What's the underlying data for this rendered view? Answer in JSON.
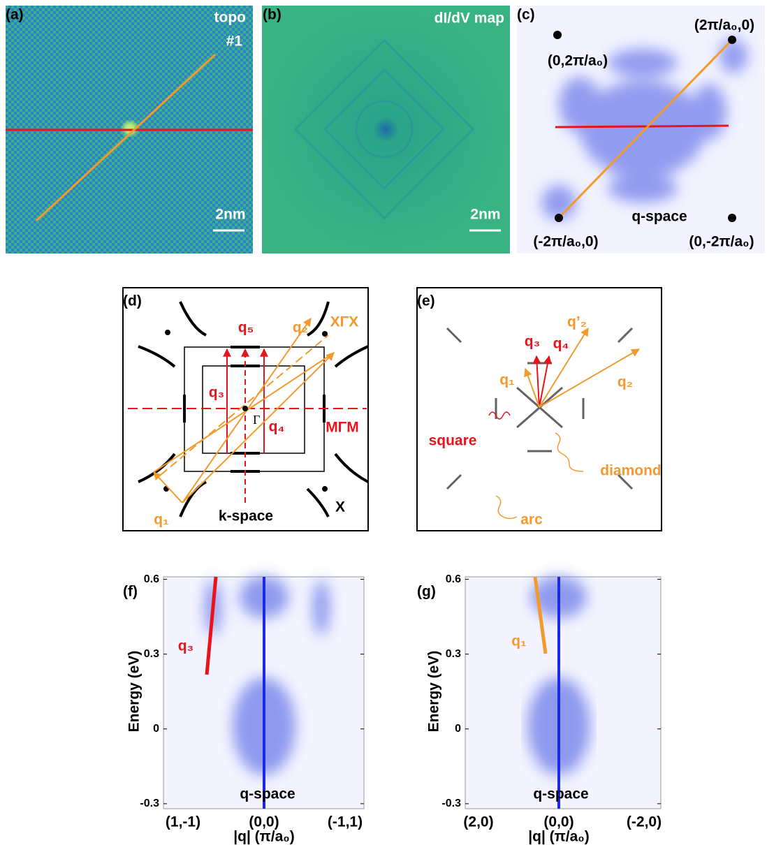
{
  "panels": {
    "a": {
      "label": "(a)",
      "title": "topo",
      "sample": "#1",
      "scale": "2nm"
    },
    "b": {
      "label": "(b)",
      "title": "dI/dV map",
      "scale": "2nm"
    },
    "c": {
      "label": "(c)",
      "points": [
        "(2π/a₀,0)",
        "(0,2π/a₀)",
        "(-2π/a₀,0)",
        "(0,-2π/a₀)"
      ],
      "space": "q-space"
    },
    "d": {
      "label": "(d)",
      "texts": [
        "q₅",
        "q₂",
        "XΓX",
        "q₃",
        "Γ",
        "q₄",
        "MΓM",
        "q₁",
        "k-space",
        "X"
      ]
    },
    "e": {
      "label": "(e)",
      "texts": [
        "q₃",
        "q₄",
        "q’₂",
        "q₁",
        "q₂",
        "square",
        "diamond",
        "arc"
      ]
    },
    "f": {
      "label": "(f)",
      "y_label": "Energy (eV)",
      "ylim": [
        -0.32,
        0.61
      ],
      "yticks": [
        0.6,
        0.3,
        0,
        -0.3
      ],
      "xticks": [
        "(1,-1)",
        "(0,0)",
        "(-1,1)"
      ],
      "x_label": "|q| (π/a₀)",
      "branch": "q₃",
      "space": "q-space"
    },
    "g": {
      "label": "(g)",
      "y_label": "Energy (eV)",
      "ylim": [
        -0.32,
        0.61
      ],
      "yticks": [
        0.6,
        0.3,
        0,
        -0.3
      ],
      "xticks": [
        "(2,0)",
        "(0,0)",
        "(-2,0)"
      ],
      "x_label": "|q| (π/a₀)",
      "branch": "q₁",
      "space": "q-space"
    }
  }
}
